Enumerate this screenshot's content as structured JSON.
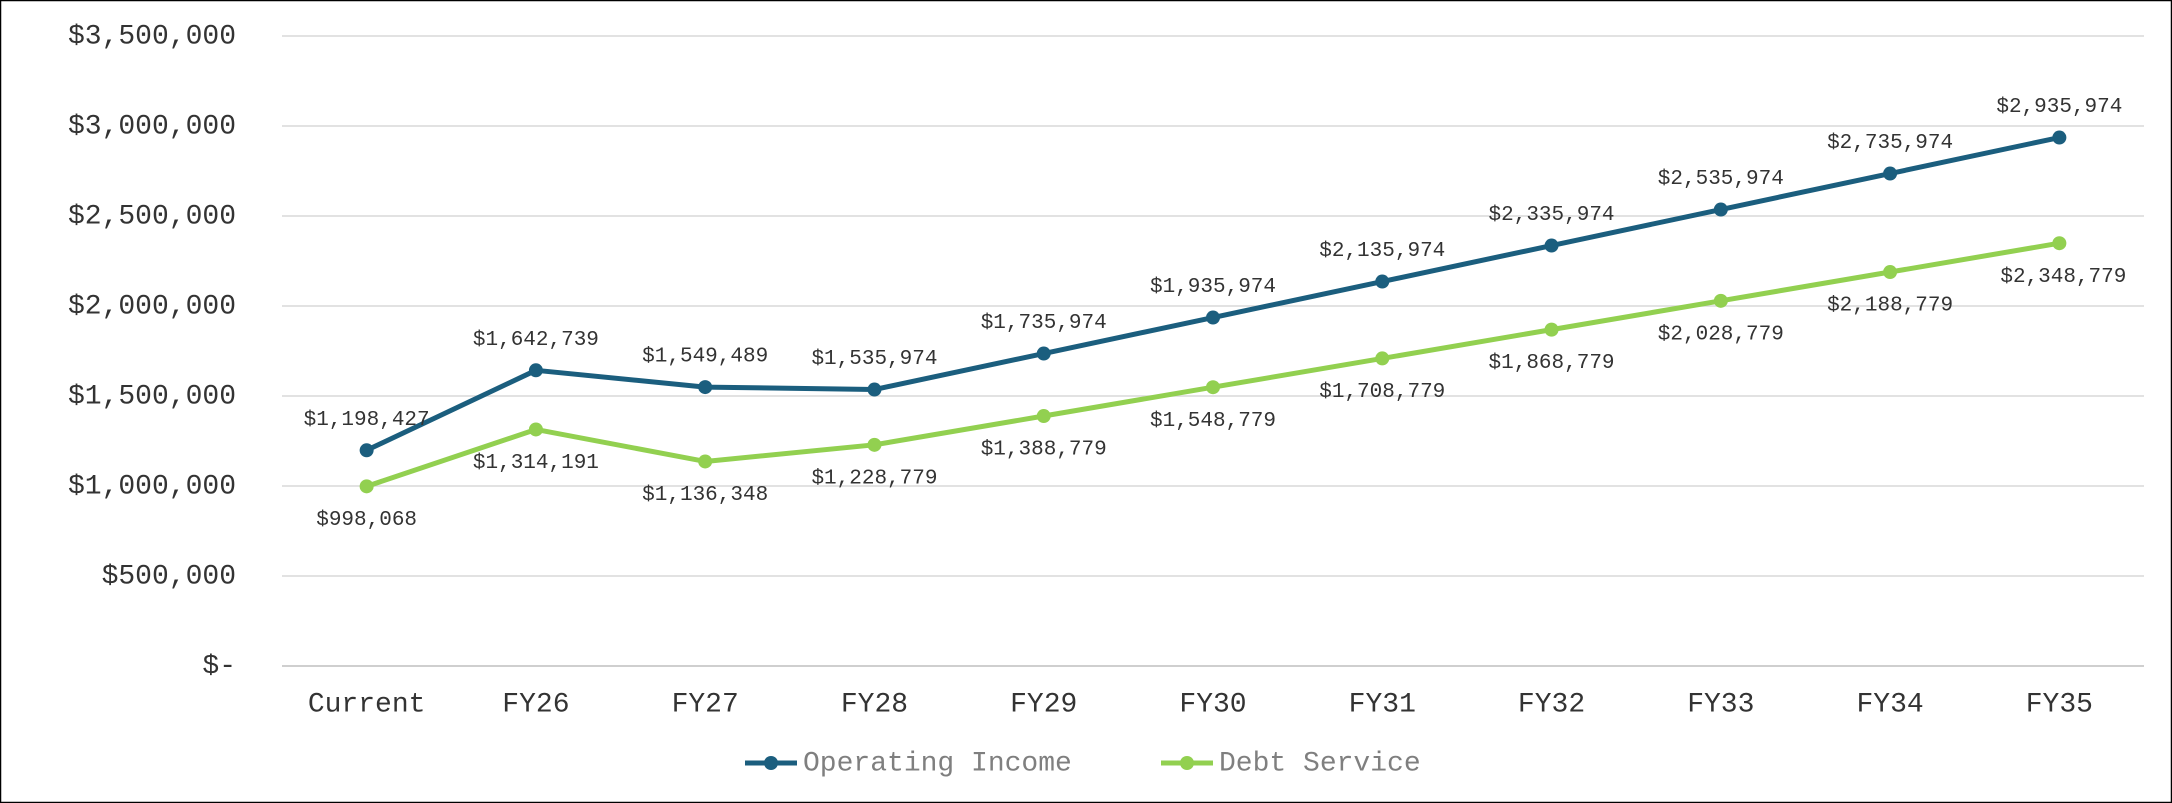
{
  "chart_data": {
    "type": "line",
    "categories": [
      "Current",
      "FY26",
      "FY27",
      "FY28",
      "FY29",
      "FY30",
      "FY31",
      "FY32",
      "FY33",
      "FY34",
      "FY35"
    ],
    "series": [
      {
        "name": "Operating Income",
        "color": "#1b5e7e",
        "values": [
          1198427,
          1642739,
          1549489,
          1535974,
          1735974,
          1935974,
          2135974,
          2335974,
          2535974,
          2735974,
          2935974
        ],
        "value_labels": [
          "$1,198,427",
          "$1,642,739",
          "$1,549,489",
          "$1,535,974",
          "$1,735,974",
          "$1,935,974",
          "$2,135,974",
          "$2,335,974",
          "$2,535,974",
          "$2,735,974",
          "$2,935,974"
        ]
      },
      {
        "name": "Debt Service",
        "color": "#92d050",
        "values": [
          998068,
          1314191,
          1136348,
          1228779,
          1388779,
          1548779,
          1708779,
          1868779,
          2028779,
          2188779,
          2348779
        ],
        "value_labels": [
          "$998,068",
          "$1,314,191",
          "$1,136,348",
          "$1,228,779",
          "$1,388,779",
          "$1,548,779",
          "$1,708,779",
          "$1,868,779",
          "$2,028,779",
          "$2,188,779",
          "$2,348,779"
        ]
      }
    ],
    "ylim": [
      0,
      3500000
    ],
    "yticks": [
      {
        "value": 0,
        "label": "$-"
      },
      {
        "value": 500000,
        "label": "$500,000"
      },
      {
        "value": 1000000,
        "label": "$1,000,000"
      },
      {
        "value": 1500000,
        "label": "$1,500,000"
      },
      {
        "value": 2000000,
        "label": "$2,000,000"
      },
      {
        "value": 2500000,
        "label": "$2,500,000"
      },
      {
        "value": 3000000,
        "label": "$3,000,000"
      },
      {
        "value": 3500000,
        "label": "$3,500,000"
      }
    ],
    "grid": true,
    "legend": "bottom"
  }
}
